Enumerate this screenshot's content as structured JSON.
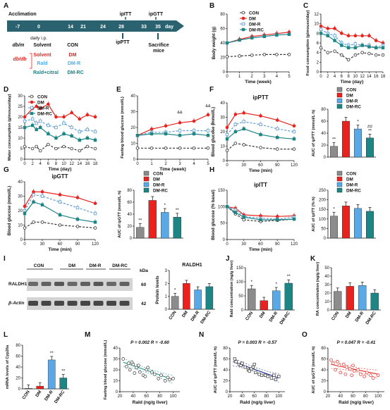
{
  "colors": {
    "CON": "#333333",
    "DM": "#e8231f",
    "DMR": "#5b9bd5",
    "DMRC": "#1e8585",
    "lightblue": "#5aa9e6",
    "blot_bg": "#d4d4d4",
    "band": "#222222",
    "timeline": "#2a6270",
    "arrow": "#1f5a66"
  },
  "panelA": {
    "label": "A",
    "acclimation": "Acclimation",
    "ticks": [
      "-7",
      "0",
      "14",
      "21",
      "24",
      "28",
      "33",
      "35"
    ],
    "day": "day",
    "daily_ip": "daily i.p.",
    "ipITT": "ipITT",
    "ipGTT": "ipGTT",
    "ipPTT": "ipPTT",
    "sacrifice": [
      "Sacrifice",
      "mice"
    ],
    "dbm": "db/m",
    "dbdb": "db/db",
    "solvent": "Solvent",
    "rald": "Rald",
    "raldcitral": "Rald+citral",
    "con": "CON",
    "dm": "DM",
    "dmr": "DM-R",
    "dmrc": "DM-RC"
  },
  "legend": {
    "con": "CON",
    "dm": "DM",
    "dmr": "DM-R",
    "dmrc": "DM-RC"
  },
  "blot": {
    "title": "RALDH1",
    "groups": [
      "CON",
      "DM",
      "DM-R",
      "DM-RC"
    ],
    "kda": "kDa",
    "raldh": "RALDH1",
    "actin": "β-Actin",
    "mw1": "60",
    "mw2": "42"
  },
  "panelLabels": {
    "B": "B",
    "C": "C",
    "D": "D",
    "E": "E",
    "F": "F",
    "G": "G",
    "H": "H",
    "I": "I",
    "J": "J",
    "K": "K",
    "L": "L",
    "M": "M",
    "N": "N",
    "O": "O"
  },
  "chart_data": [
    {
      "panel": "B",
      "type": "line",
      "x": [
        0,
        1,
        2,
        3,
        4,
        5
      ],
      "xticks": [
        "0",
        "1",
        "2",
        "3",
        "4",
        "5"
      ],
      "xlabel": "Time (week)",
      "ylabel": "Body weight (g)",
      "ylim": [
        0,
        80
      ],
      "yticks": [
        0,
        20,
        40,
        60,
        80
      ],
      "series": [
        {
          "name": "CON",
          "values": [
            21,
            22,
            23,
            24,
            24,
            24
          ]
        },
        {
          "name": "DM",
          "values": [
            40,
            45,
            49,
            51,
            53,
            55
          ]
        },
        {
          "name": "DM-R",
          "values": [
            40,
            44,
            47,
            49,
            51,
            52
          ]
        },
        {
          "name": "DM-RC",
          "values": [
            40,
            44,
            47,
            49,
            51,
            52
          ]
        }
      ]
    },
    {
      "panel": "C",
      "type": "line",
      "x": [
        0,
        2,
        4,
        6,
        8,
        10,
        12,
        14,
        16,
        18
      ],
      "xticks": [
        "0",
        "2",
        "4",
        "6",
        "8",
        "10",
        "12",
        "14",
        "16",
        "18"
      ],
      "xlabel": "Time (day)",
      "ylabel": "Food consumption (g/mouse/day)",
      "ylim": [
        0,
        12
      ],
      "yticks": [
        0,
        2,
        4,
        6,
        8,
        10,
        12
      ],
      "series": [
        {
          "name": "CON",
          "values": [
            5,
            4,
            4.3,
            3.5,
            2.5,
            3.5,
            4,
            3.8,
            3.5,
            3.5
          ]
        },
        {
          "name": "DM",
          "values": [
            9.5,
            9,
            9,
            8,
            7.5,
            7.5,
            7.5,
            7.5,
            6.5,
            6
          ]
        },
        {
          "name": "DM-R",
          "values": [
            8.8,
            8,
            7.5,
            6,
            5.5,
            5.8,
            5.5,
            5.5,
            5,
            5.5
          ]
        },
        {
          "name": "DM-RC",
          "values": [
            8,
            7.5,
            6.5,
            5.5,
            5,
            5,
            5.5,
            5.2,
            5,
            5
          ]
        }
      ]
    },
    {
      "panel": "D",
      "type": "line",
      "x": [
        0,
        2,
        3,
        4,
        6,
        8,
        10,
        12,
        14,
        16,
        18
      ],
      "xticks": [
        "0",
        "2",
        "4",
        "6",
        "8",
        "10",
        "12",
        "14",
        "16",
        "18"
      ],
      "xlabel": "Time (day)",
      "ylabel": "Water consumption (g/mouse/day)",
      "ylim": [
        0,
        30
      ],
      "yticks": [
        0,
        5,
        10,
        15,
        20,
        25,
        30
      ],
      "series": [
        {
          "name": "CON",
          "values": [
            6,
            5,
            6,
            4,
            7,
            5,
            6,
            5,
            4,
            6,
            5
          ]
        },
        {
          "name": "DM",
          "values": [
            20,
            24,
            25,
            24,
            26,
            20,
            20,
            22,
            19,
            21,
            20
          ]
        },
        {
          "name": "DM-R",
          "values": [
            18,
            19,
            17,
            18,
            16,
            15,
            17,
            15,
            13,
            14,
            13
          ]
        },
        {
          "name": "DM-RC",
          "values": [
            15,
            16,
            14,
            15,
            12,
            10,
            12,
            11,
            9,
            10,
            9
          ]
        }
      ]
    },
    {
      "panel": "E",
      "type": "line",
      "x": [
        0,
        1,
        2,
        3,
        4,
        5
      ],
      "xticks": [
        "0",
        "1",
        "2",
        "3",
        "4",
        "5"
      ],
      "xlabel": "Time (week)",
      "ylabel": "Fasting blood glucose (mmol/L)",
      "ylim": [
        0,
        40
      ],
      "yticks": [
        0,
        10,
        20,
        30,
        40
      ],
      "annotations": [
        "&&",
        "&&",
        "**",
        "**"
      ],
      "series": [
        {
          "name": "CON",
          "values": [
            7,
            7,
            7,
            7,
            7,
            7
          ]
        },
        {
          "name": "DM",
          "values": [
            15,
            19,
            21,
            23,
            24,
            28
          ]
        },
        {
          "name": "DM-R",
          "values": [
            15,
            17,
            17,
            18,
            18,
            18
          ]
        },
        {
          "name": "DM-RC",
          "values": [
            15,
            16,
            16,
            15,
            16,
            15
          ]
        }
      ]
    },
    {
      "panel": "F",
      "type": "line",
      "title": "ipPTT",
      "x": [
        0,
        15,
        30,
        60,
        90,
        120
      ],
      "xticks": [
        "0",
        "30",
        "60",
        "90",
        "120"
      ],
      "xlabel": "Time (min)",
      "ylabel": "Blood glucose (mmol/L)",
      "ylim": [
        0,
        40
      ],
      "yticks": [
        0,
        10,
        20,
        30,
        40
      ],
      "series": [
        {
          "name": "CON",
          "values": [
            7,
            12,
            11,
            9,
            8,
            8
          ]
        },
        {
          "name": "DM",
          "values": [
            23,
            32,
            33,
            31,
            28,
            24
          ]
        },
        {
          "name": "DM-R",
          "values": [
            18,
            25,
            27,
            25,
            22,
            20
          ]
        },
        {
          "name": "DM-RC",
          "values": [
            15,
            20,
            22,
            18,
            16,
            15
          ]
        }
      ]
    },
    {
      "panel": "F2",
      "type": "bar",
      "categories": [
        "CON",
        "DM",
        "DM-R",
        "DM-RC"
      ],
      "values": [
        18,
        60,
        47,
        32
      ],
      "ylabel": "AUC of ipPTT (mmol/L·h)",
      "ylim": [
        0,
        80
      ],
      "yticks": [
        0,
        20,
        40,
        60,
        80
      ],
      "annotations": [
        "**",
        "",
        "*",
        "##\n**"
      ]
    },
    {
      "panel": "G",
      "type": "line",
      "title": "ipGTT",
      "x": [
        0,
        15,
        30,
        60,
        90,
        120
      ],
      "xticks": [
        "0",
        "30",
        "60",
        "90",
        "120"
      ],
      "xlabel": "Time (min)",
      "ylabel": "Blood glucose (mmol/L)",
      "ylim": [
        0,
        40
      ],
      "yticks": [
        0,
        10,
        20,
        30,
        40
      ],
      "series": [
        {
          "name": "CON",
          "values": [
            8,
            12,
            12,
            10,
            9,
            8
          ]
        },
        {
          "name": "DM",
          "values": [
            23,
            33,
            33,
            31,
            29,
            25
          ]
        },
        {
          "name": "DM-R",
          "values": [
            20,
            31,
            30,
            26,
            22,
            18
          ]
        },
        {
          "name": "DM-RC",
          "values": [
            18,
            26,
            24,
            17,
            14,
            12
          ]
        }
      ]
    },
    {
      "panel": "G2",
      "type": "bar",
      "categories": [
        "CON",
        "DM",
        "DM-R",
        "DM-RC"
      ],
      "values": [
        18,
        63,
        43,
        35
      ],
      "ylabel": "AUC of ipGTT (mmol/L·h)",
      "ylim": [
        0,
        80
      ],
      "yticks": [
        0,
        20,
        40,
        60,
        80
      ],
      "annotations": [
        "**",
        "",
        "*",
        "**"
      ]
    },
    {
      "panel": "H",
      "type": "line",
      "title": "ipITT",
      "x": [
        0,
        15,
        30,
        60,
        90,
        120
      ],
      "xticks": [
        "0",
        "30",
        "60",
        "90",
        "120"
      ],
      "xlabel": "Time (min)",
      "ylabel": "Blood glucose (% basal)",
      "ylim": [
        0,
        150
      ],
      "yticks": [
        0,
        50,
        100,
        150
      ],
      "series": [
        {
          "name": "CON",
          "values": [
            100,
            78,
            60,
            55,
            58,
            62
          ]
        },
        {
          "name": "DM",
          "values": [
            100,
            95,
            75,
            72,
            70,
            72
          ]
        },
        {
          "name": "DM-R",
          "values": [
            100,
            90,
            70,
            65,
            62,
            68
          ]
        },
        {
          "name": "DM-RC",
          "values": [
            100,
            82,
            68,
            60,
            60,
            62
          ]
        }
      ]
    },
    {
      "panel": "H2",
      "type": "bar",
      "categories": [
        "CON",
        "DM",
        "DM-R",
        "DM-RC"
      ],
      "values": [
        115,
        168,
        155,
        140
      ],
      "ylabel": "AUC of ipITT (%·h)",
      "ylim": [
        0,
        250
      ],
      "yticks": [
        0,
        50,
        100,
        150,
        200,
        250
      ],
      "annotations": [
        "*",
        "",
        "",
        ""
      ]
    },
    {
      "panel": "I",
      "type": "bar",
      "title": "RALDH1",
      "categories": [
        "CON",
        "DM",
        "DM-R",
        "DM-RC"
      ],
      "values": [
        1.0,
        2.0,
        1.5,
        1.75
      ],
      "ylabel": "Protein levels",
      "ylim": [
        0,
        3
      ],
      "yticks": [
        0,
        1,
        2,
        3
      ],
      "annotations": [
        "*",
        "",
        "",
        ""
      ]
    },
    {
      "panel": "J",
      "type": "bar",
      "categories": [
        "CON",
        "DM",
        "DM-R",
        "DM-RC"
      ],
      "values": [
        75,
        33,
        68,
        95
      ],
      "ylabel": "Rald concentration (ng/g liver)",
      "ylim": [
        0,
        150
      ],
      "yticks": [
        0,
        50,
        100,
        150
      ],
      "annotations": [
        "*",
        "",
        "*",
        "**"
      ]
    },
    {
      "panel": "K",
      "type": "bar",
      "categories": [
        "CON",
        "DM",
        "DM-R",
        "DM-RC"
      ],
      "values": [
        22,
        28,
        29,
        20
      ],
      "ylabel": "RA concentration (ng/g liver)",
      "ylim": [
        0,
        50
      ],
      "yticks": [
        0,
        10,
        20,
        30,
        40,
        50
      ],
      "annotations": [
        "",
        "",
        "",
        ""
      ]
    },
    {
      "panel": "L",
      "type": "bar",
      "categories": [
        "CON",
        "DM",
        "DM-R",
        "DM-RC"
      ],
      "values": [
        1,
        5,
        53,
        20
      ],
      "ylabel": "mRNA levels of Cyp26a",
      "ylim": [
        0,
        80
      ],
      "yticks": [
        0,
        20,
        40,
        60,
        80
      ],
      "annotations": [
        "",
        "",
        "**",
        "**"
      ]
    },
    {
      "panel": "M",
      "type": "scatter",
      "stat": "P = 0.002  R = -0.60",
      "xlabel": "Rald (ng/g liver)",
      "ylabel": "Fasting blood glucose (mmol/L)",
      "xlim": [
        20,
        110
      ],
      "ylim": [
        0,
        40
      ],
      "xticks": [
        20,
        40,
        60,
        80,
        100
      ],
      "yticks": [
        0,
        10,
        20,
        30,
        40
      ],
      "points": [
        [
          25,
          30
        ],
        [
          30,
          23
        ],
        [
          33,
          26
        ],
        [
          35,
          20
        ],
        [
          38,
          27
        ],
        [
          40,
          25
        ],
        [
          42,
          17
        ],
        [
          45,
          22
        ],
        [
          48,
          24
        ],
        [
          50,
          18
        ],
        [
          55,
          15
        ],
        [
          58,
          14
        ],
        [
          60,
          20
        ],
        [
          62,
          22
        ],
        [
          68,
          18
        ],
        [
          72,
          16
        ],
        [
          78,
          12
        ],
        [
          82,
          15
        ],
        [
          88,
          10
        ],
        [
          92,
          13
        ],
        [
          95,
          11
        ],
        [
          100,
          12
        ]
      ],
      "fit": [
        [
          25,
          27
        ],
        [
          100,
          11
        ]
      ]
    },
    {
      "panel": "N",
      "type": "scatter",
      "stat": "P = 0.003  R = -0.57",
      "xlabel": "Rald (ng/g liver)",
      "ylabel": "AUC of ipPTT (mmol/L·h)",
      "xlim": [
        20,
        110
      ],
      "ylim": [
        0,
        80
      ],
      "xticks": [
        20,
        40,
        60,
        80,
        100
      ],
      "yticks": [
        0,
        20,
        40,
        60,
        80
      ],
      "points": [
        [
          28,
          60
        ],
        [
          30,
          55
        ],
        [
          35,
          50
        ],
        [
          38,
          48
        ],
        [
          40,
          52
        ],
        [
          45,
          45
        ],
        [
          50,
          40
        ],
        [
          52,
          38
        ],
        [
          55,
          42
        ],
        [
          58,
          45
        ],
        [
          60,
          50
        ],
        [
          62,
          35
        ],
        [
          68,
          32
        ],
        [
          72,
          30
        ],
        [
          78,
          30
        ],
        [
          82,
          28
        ],
        [
          88,
          25
        ],
        [
          92,
          30
        ],
        [
          95,
          22
        ],
        [
          100,
          28
        ]
      ],
      "fit": [
        [
          25,
          55
        ],
        [
          100,
          25
        ]
      ]
    },
    {
      "panel": "O",
      "type": "scatter",
      "stat": "P = 0.047  R = -0.41",
      "xlabel": "Rald (ng/g liver)",
      "ylabel": "AUC of ipGTT (mmol/L·h)",
      "xlim": [
        20,
        110
      ],
      "ylim": [
        0,
        80
      ],
      "xticks": [
        20,
        40,
        60,
        80,
        100
      ],
      "yticks": [
        0,
        20,
        40,
        60,
        80
      ],
      "points": [
        [
          25,
          58
        ],
        [
          28,
          52
        ],
        [
          32,
          40
        ],
        [
          35,
          55
        ],
        [
          38,
          48
        ],
        [
          40,
          35
        ],
        [
          45,
          50
        ],
        [
          48,
          32
        ],
        [
          50,
          45
        ],
        [
          55,
          42
        ],
        [
          58,
          30
        ],
        [
          60,
          48
        ],
        [
          62,
          38
        ],
        [
          68,
          40
        ],
        [
          72,
          32
        ],
        [
          78,
          28
        ],
        [
          82,
          35
        ],
        [
          88,
          30
        ],
        [
          92,
          25
        ],
        [
          100,
          30
        ]
      ],
      "fit": [
        [
          25,
          50
        ],
        [
          100,
          32
        ]
      ]
    }
  ]
}
